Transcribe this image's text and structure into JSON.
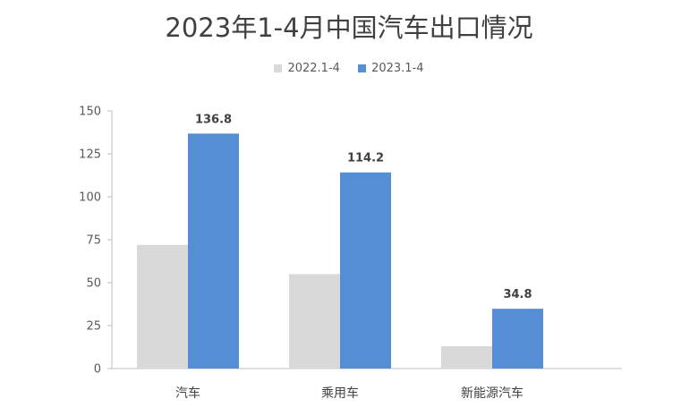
{
  "chart_data": {
    "type": "bar",
    "title": "2023年1-4月中国汽车出口情况",
    "categories": [
      "汽车",
      "乘用车",
      "新能源汽车"
    ],
    "series": [
      {
        "name": "2022.1-4",
        "values": [
          72,
          55,
          13
        ],
        "color": "#d9d9d9",
        "show_labels": false
      },
      {
        "name": "2023.1-4",
        "values": [
          136.8,
          114.2,
          34.8
        ],
        "color": "#558ed5",
        "show_labels": true
      }
    ],
    "yticks": [
      0,
      25,
      50,
      75,
      100,
      125,
      150
    ],
    "ylim": [
      0,
      150
    ],
    "xlabel": "",
    "ylabel": "",
    "legend": "top",
    "grid": false
  }
}
